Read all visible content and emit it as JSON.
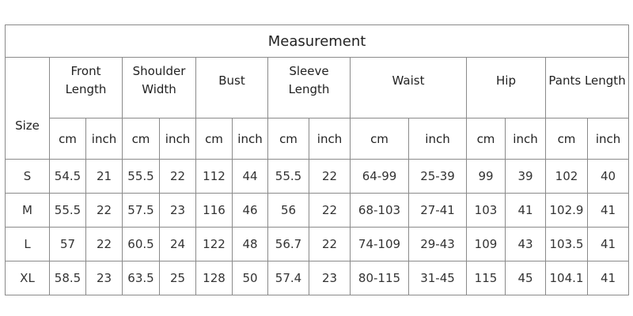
{
  "title": "Measurement",
  "size_header": "Size",
  "groups": [
    {
      "label": "Front Length",
      "units": [
        "cm",
        "inch"
      ]
    },
    {
      "label": "Shoulder Width",
      "units": [
        "cm",
        "inch"
      ]
    },
    {
      "label": "Bust",
      "units": [
        "cm",
        "inch"
      ]
    },
    {
      "label": "Sleeve Length",
      "units": [
        "cm",
        "inch"
      ]
    },
    {
      "label": "Waist",
      "units": [
        "cm",
        "inch"
      ]
    },
    {
      "label": "Hip",
      "units": [
        "cm",
        "inch"
      ]
    },
    {
      "label": "Pants Length",
      "units": [
        "cm",
        "inch"
      ]
    }
  ],
  "rows": [
    [
      "S",
      "54.5",
      "21",
      "55.5",
      "22",
      "112",
      "44",
      "55.5",
      "22",
      "64-99",
      "25-39",
      "99",
      "39",
      "102",
      "40"
    ],
    [
      "M",
      "55.5",
      "22",
      "57.5",
      "23",
      "116",
      "46",
      "56",
      "22",
      "68-103",
      "27-41",
      "103",
      "41",
      "102.9",
      "41"
    ],
    [
      "L",
      "57",
      "22",
      "60.5",
      "24",
      "122",
      "48",
      "56.7",
      "22",
      "74-109",
      "29-43",
      "109",
      "43",
      "103.5",
      "41"
    ],
    [
      "XL",
      "58.5",
      "23",
      "63.5",
      "25",
      "128",
      "50",
      "57.4",
      "23",
      "80-115",
      "31-45",
      "115",
      "45",
      "104.1",
      "41"
    ]
  ]
}
